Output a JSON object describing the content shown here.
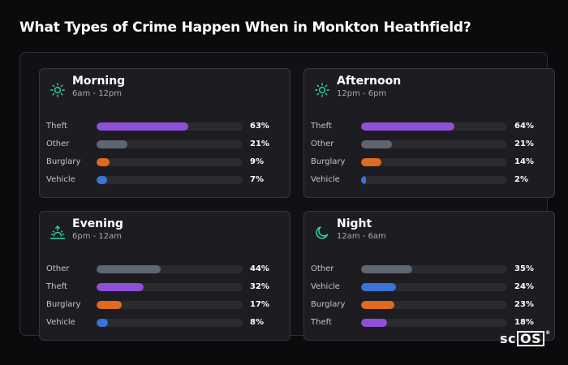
{
  "page": {
    "title": "What Types of Crime Happen When in Monkton Heathfield?"
  },
  "brand": {
    "text_left": "sc",
    "text_boxed": "OS",
    "mark": "®"
  },
  "colors": {
    "Theft": "#8f4fd6",
    "Other": "#5f6573",
    "Burglary": "#e06a1e",
    "Vehicle": "#3a74d8",
    "icon": "#2dd4a6"
  },
  "chart_data": [
    {
      "type": "bar",
      "title": "Morning",
      "subtitle": "6am - 12pm",
      "icon": "sun-icon",
      "categories": [
        "Theft",
        "Other",
        "Burglary",
        "Vehicle"
      ],
      "values": [
        63,
        21,
        9,
        7
      ],
      "value_labels": [
        "63%",
        "21%",
        "9%",
        "7%"
      ],
      "unit": "%",
      "xlim": [
        0,
        100
      ]
    },
    {
      "type": "bar",
      "title": "Afternoon",
      "subtitle": "12pm - 6pm",
      "icon": "sun-icon",
      "categories": [
        "Theft",
        "Other",
        "Burglary",
        "Vehicle"
      ],
      "values": [
        64,
        21,
        14,
        2
      ],
      "value_labels": [
        "64%",
        "21%",
        "14%",
        "2%"
      ],
      "unit": "%",
      "xlim": [
        0,
        100
      ]
    },
    {
      "type": "bar",
      "title": "Evening",
      "subtitle": "6pm - 12am",
      "icon": "sunset-icon",
      "categories": [
        "Other",
        "Theft",
        "Burglary",
        "Vehicle"
      ],
      "values": [
        44,
        32,
        17,
        8
      ],
      "value_labels": [
        "44%",
        "32%",
        "17%",
        "8%"
      ],
      "unit": "%",
      "xlim": [
        0,
        100
      ]
    },
    {
      "type": "bar",
      "title": "Night",
      "subtitle": "12am - 6am",
      "icon": "moon-icon",
      "categories": [
        "Other",
        "Vehicle",
        "Burglary",
        "Theft"
      ],
      "values": [
        35,
        24,
        23,
        18
      ],
      "value_labels": [
        "35%",
        "24%",
        "23%",
        "18%"
      ],
      "unit": "%",
      "xlim": [
        0,
        100
      ]
    }
  ]
}
